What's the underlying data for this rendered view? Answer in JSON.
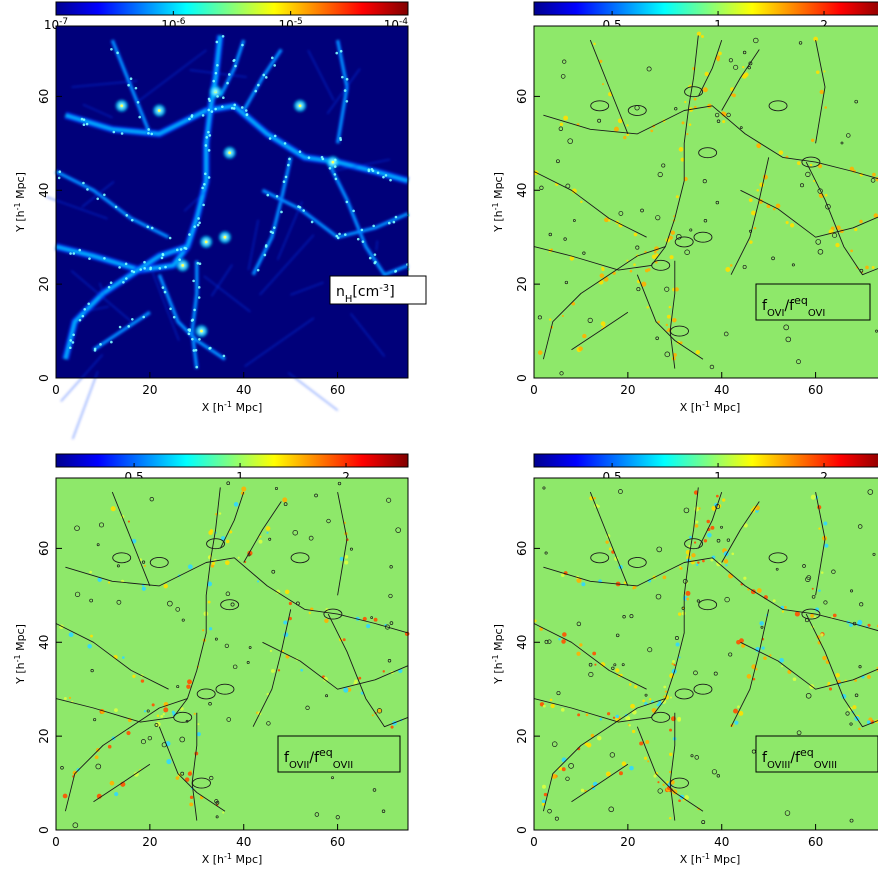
{
  "chart_data": [
    {
      "type": "heatmap",
      "panel": "top-left",
      "colorbar": {
        "scale": "log",
        "range": [
          1e-07,
          0.0001
        ],
        "ticks": [
          "10",
          "10",
          "10",
          "10"
        ],
        "tick_exponents": [
          "-7",
          "-6",
          "-5",
          "-4"
        ],
        "colormap": "jet"
      },
      "xlabel": "X [h",
      "xlabel_sup": "-1",
      "xlabel_tail": " Mpc]",
      "ylabel": "Y [h",
      "ylabel_sup": "-1",
      "ylabel_tail": " Mpc]",
      "xlim": [
        0,
        75
      ],
      "ylim": [
        0,
        75
      ],
      "xticks": [
        "0",
        "20",
        "40",
        "60"
      ],
      "yticks": [
        "0",
        "20",
        "40",
        "60"
      ],
      "quantity_label": {
        "base": "n",
        "sub": "H",
        "unit": "[cm",
        "unit_sup": "-3",
        "unit_tail": "]"
      },
      "background_color": "#00007a",
      "filament_colors": [
        "#0040ff",
        "#00c8ff",
        "#80ffff",
        "#ffff60"
      ]
    },
    {
      "type": "heatmap",
      "panel": "top-right",
      "colorbar": {
        "scale": "log",
        "range": [
          0.3,
          3.0
        ],
        "ticks": [
          "0.5",
          "1",
          "2"
        ],
        "colormap": "jet"
      },
      "xlabel": "X [h",
      "xlabel_sup": "-1",
      "xlabel_tail": " Mpc]",
      "ylabel": "Y [h",
      "ylabel_sup": "-1",
      "ylabel_tail": " Mpc]",
      "xlim": [
        0,
        75
      ],
      "ylim": [
        0,
        75
      ],
      "xticks": [
        "0",
        "20",
        "40",
        "60"
      ],
      "yticks": [
        "0",
        "20",
        "40",
        "60"
      ],
      "quantity_label": {
        "num": "f",
        "num_sub": "OVI",
        "den": "f",
        "den_sup": "eq",
        "den_sub": "OVI"
      },
      "background_color": "#8ee86a",
      "contours": true
    },
    {
      "type": "heatmap",
      "panel": "bottom-left",
      "colorbar": {
        "scale": "log",
        "range": [
          0.3,
          3.0
        ],
        "ticks": [
          "0.5",
          "1",
          "2"
        ],
        "colormap": "jet"
      },
      "xlabel": "X [h",
      "xlabel_sup": "-1",
      "xlabel_tail": " Mpc]",
      "ylabel": "Y [h",
      "ylabel_sup": "-1",
      "ylabel_tail": " Mpc]",
      "xlim": [
        0,
        75
      ],
      "ylim": [
        0,
        75
      ],
      "xticks": [
        "0",
        "20",
        "40",
        "60"
      ],
      "yticks": [
        "0",
        "20",
        "40",
        "60"
      ],
      "quantity_label": {
        "num": "f",
        "num_sub": "OVII",
        "den": "f",
        "den_sup": "eq",
        "den_sub": "OVII"
      },
      "background_color": "#8ee86a",
      "contours": true
    },
    {
      "type": "heatmap",
      "panel": "bottom-right",
      "colorbar": {
        "scale": "log",
        "range": [
          0.3,
          3.0
        ],
        "ticks": [
          "0.5",
          "1",
          "2"
        ],
        "colormap": "jet"
      },
      "xlabel": "X [h",
      "xlabel_sup": "-1",
      "xlabel_tail": " Mpc]",
      "ylabel": "Y [h",
      "ylabel_sup": "-1",
      "ylabel_tail": " Mpc]",
      "xlim": [
        0,
        75
      ],
      "ylim": [
        0,
        75
      ],
      "xticks": [
        "0",
        "20",
        "40",
        "60"
      ],
      "yticks": [
        "0",
        "20",
        "40",
        "60"
      ],
      "quantity_label": {
        "num": "f",
        "num_sub": "OVIII",
        "den": "f",
        "den_sup": "eq",
        "den_sub": "OVIII"
      },
      "background_color": "#8ee86a",
      "contours": true
    }
  ]
}
